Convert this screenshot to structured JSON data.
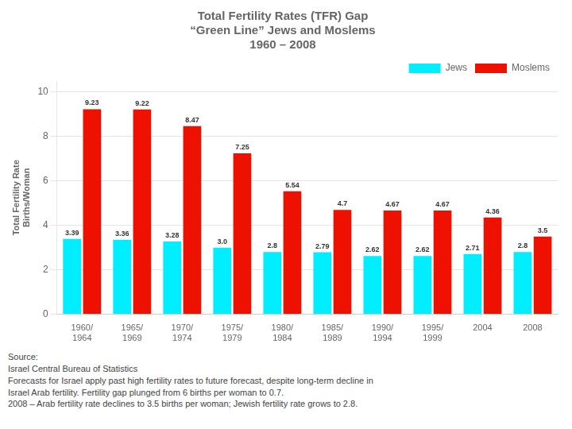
{
  "chart_data": {
    "type": "bar",
    "title": [
      "Total Fertility Rates (TFR) Gap",
      "“Green Line” Jews and Moslems",
      "1960 – 2008"
    ],
    "ylabel": [
      "Total Fertility Rate",
      "Births/Woman"
    ],
    "categories": [
      "1960/\n1964",
      "1965/\n1969",
      "1970/\n1974",
      "1975/\n1979",
      "1980/\n1984",
      "1985/\n1989",
      "1990/\n1994",
      "1995/\n1999",
      "2004",
      "2008"
    ],
    "series": [
      {
        "name": "Jews",
        "color": "#00EEFF",
        "values": [
          3.39,
          3.36,
          3.28,
          3.0,
          2.8,
          2.79,
          2.62,
          2.62,
          2.71,
          2.8
        ],
        "value_labels": [
          "3.39",
          "3.36",
          "3.28",
          "3.0",
          "2.8",
          "2.79",
          "2.62",
          "2.62",
          "2.71",
          "2.8"
        ]
      },
      {
        "name": "Moslems",
        "color": "#EE1100",
        "values": [
          9.23,
          9.22,
          8.47,
          7.25,
          5.54,
          4.7,
          4.67,
          4.67,
          4.36,
          3.5
        ],
        "value_labels": [
          "9.23",
          "9.22",
          "8.47",
          "7.25",
          "5.54",
          "4.7",
          "4.67",
          "4.67",
          "4.36",
          "3.5"
        ]
      }
    ],
    "ylim": [
      0,
      10.5
    ],
    "yticks": [
      0,
      2,
      4,
      6,
      8,
      10
    ],
    "grid": true,
    "legend": "upper right",
    "data_labels": true,
    "annotations": [
      "Source:",
      "Israel Central Bureau of Statistics",
      "Forecasts for Israel apply past high fertility rates to future forecast, despite long-term decline in",
      "Israel Arab fertility. Fertility gap plunged from 6 births per woman to 0.7.",
      "2008 – Arab fertility rate declines to 3.5 births per woman; Jewish fertility rate grows to 2.8."
    ]
  }
}
